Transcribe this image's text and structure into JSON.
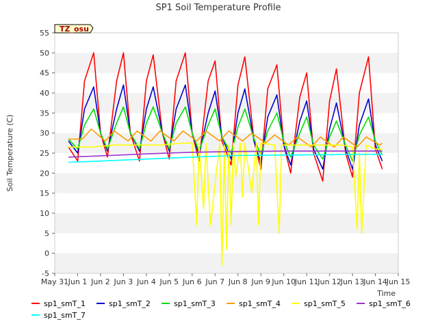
{
  "chart_data": {
    "type": "line",
    "title": "SP1 Soil Temperature Profile",
    "xlabel": "Time",
    "ylabel": "Soil Temperature (C)",
    "badge": "TZ_osu",
    "xlim": [
      0,
      15
    ],
    "ylim": [
      -5,
      55
    ],
    "yticks": [
      -5,
      0,
      5,
      10,
      15,
      20,
      25,
      30,
      35,
      40,
      45,
      50,
      55
    ],
    "xticks": [
      {
        "day": 0,
        "label": "May 31"
      },
      {
        "day": 1,
        "label": "Jun 1"
      },
      {
        "day": 2,
        "label": "Jun 2"
      },
      {
        "day": 3,
        "label": "Jun 3"
      },
      {
        "day": 4,
        "label": "Jun 4"
      },
      {
        "day": 5,
        "label": "Jun 5"
      },
      {
        "day": 6,
        "label": "Jun 6"
      },
      {
        "day": 7,
        "label": "Jun 7"
      },
      {
        "day": 8,
        "label": "Jun 8"
      },
      {
        "day": 9,
        "label": "Jun 9"
      },
      {
        "day": 10,
        "label": "Jun 10"
      },
      {
        "day": 11,
        "label": "Jun 11"
      },
      {
        "day": 12,
        "label": "Jun 12"
      },
      {
        "day": 13,
        "label": "Jun 13"
      },
      {
        "day": 14,
        "label": "Jun 14"
      },
      {
        "day": 15,
        "label": "Jun 15"
      }
    ],
    "grid": "alternating horizontal bands",
    "legend_position": "bottom",
    "series": [
      {
        "name": "sp1_smT_1",
        "color": "#ff0000",
        "x": [
          0.6,
          1.0,
          1.3,
          1.7,
          2.0,
          2.3,
          2.7,
          3.0,
          3.3,
          3.7,
          4.0,
          4.3,
          4.7,
          5.0,
          5.3,
          5.7,
          6.0,
          6.3,
          6.7,
          7.0,
          7.3,
          7.7,
          8.0,
          8.3,
          8.7,
          9.0,
          9.3,
          9.7,
          10.0,
          10.3,
          10.7,
          11.0,
          11.3,
          11.7,
          12.0,
          12.3,
          12.7,
          13.0,
          13.3,
          13.7,
          14.0,
          14.3
        ],
        "y": [
          26.5,
          23,
          43,
          50,
          30,
          24,
          43,
          50,
          30,
          23,
          43,
          49.5,
          30,
          23.5,
          43,
          50,
          30,
          23,
          43,
          48,
          28,
          22,
          42,
          49,
          28,
          21,
          41,
          47,
          27,
          20,
          39,
          45,
          25,
          18,
          38,
          46,
          25,
          19,
          40,
          49,
          26,
          21
        ]
      },
      {
        "name": "sp1_smT_2",
        "color": "#0000cc",
        "x": [
          0.6,
          1.0,
          1.3,
          1.7,
          2.0,
          2.3,
          2.7,
          3.0,
          3.3,
          3.7,
          4.0,
          4.3,
          4.7,
          5.0,
          5.3,
          5.7,
          6.0,
          6.3,
          6.7,
          7.0,
          7.3,
          7.7,
          8.0,
          8.3,
          8.7,
          9.0,
          9.3,
          9.7,
          10.0,
          10.3,
          10.7,
          11.0,
          11.3,
          11.7,
          12.0,
          12.3,
          12.7,
          13.0,
          13.3,
          13.7,
          14.0,
          14.3
        ],
        "y": [
          28,
          25,
          36,
          41.5,
          30,
          25.5,
          36,
          42,
          30,
          25.5,
          36,
          41.5,
          30,
          25.5,
          36,
          42,
          30,
          24.5,
          35,
          40.5,
          29,
          23.5,
          35,
          41,
          28,
          22.5,
          34,
          39.5,
          27,
          22,
          33,
          38,
          26,
          21,
          31,
          37.5,
          26,
          21,
          32,
          38.5,
          27,
          23
        ]
      },
      {
        "name": "sp1_smT_3",
        "color": "#00dd00",
        "x": [
          0.6,
          1.0,
          1.3,
          1.7,
          2.0,
          2.3,
          2.7,
          3.0,
          3.3,
          3.7,
          4.0,
          4.3,
          4.7,
          5.0,
          5.3,
          5.7,
          6.0,
          6.3,
          6.7,
          7.0,
          7.3,
          7.7,
          8.0,
          8.3,
          8.7,
          9.0,
          9.3,
          9.7,
          10.0,
          10.3,
          10.7,
          11.0,
          11.3,
          11.7,
          12.0,
          12.3,
          12.7,
          13.0,
          13.3,
          13.7,
          14.0,
          14.3
        ],
        "y": [
          28.5,
          26,
          32,
          36,
          30,
          26,
          32.5,
          36.5,
          30,
          26,
          32.5,
          36.5,
          30,
          26,
          32.5,
          36.5,
          30,
          25.5,
          32,
          36,
          29,
          25,
          31.5,
          36,
          28.5,
          24.5,
          30.5,
          35,
          28,
          24,
          30,
          34,
          27,
          23.5,
          29,
          33,
          27,
          23,
          29.5,
          34,
          28,
          24.5
        ]
      },
      {
        "name": "sp1_smT_4",
        "color": "#ff9900",
        "x": [
          0.6,
          1.2,
          1.6,
          2.2,
          2.6,
          3.2,
          3.6,
          4.2,
          4.6,
          5.2,
          5.6,
          6.2,
          6.6,
          7.2,
          7.6,
          8.2,
          8.6,
          9.2,
          9.6,
          10.2,
          10.6,
          11.2,
          11.6,
          12.2,
          12.6,
          13.2,
          13.6,
          14.2,
          14.3
        ],
        "y": [
          28.5,
          28.5,
          31,
          28,
          30.5,
          28,
          30.5,
          28,
          30.5,
          28,
          30.5,
          28,
          30.5,
          28,
          30.5,
          28,
          30,
          27.5,
          29.5,
          27,
          29,
          26.5,
          29,
          26.5,
          29,
          26.5,
          29,
          27,
          27.5
        ]
      },
      {
        "name": "sp1_smT_5",
        "color": "#ffff00",
        "x": [
          0.6,
          1.6,
          2.6,
          3.6,
          4.6,
          5.6,
          6.0,
          6.2,
          6.3,
          6.5,
          6.6,
          6.8,
          7.2,
          7.3,
          7.4,
          7.5,
          7.6,
          7.7,
          7.8,
          7.9,
          8.1,
          8.2,
          8.3,
          8.6,
          8.8,
          8.9,
          9.0,
          9.6,
          9.8,
          9.9,
          10.6,
          11.6,
          12.6,
          13.0,
          13.2,
          13.3,
          13.4,
          13.6,
          14.0,
          14.3
        ],
        "y": [
          26.5,
          26.5,
          27,
          27,
          27,
          27.5,
          27.5,
          7,
          27.5,
          11,
          27.5,
          7,
          27.5,
          -3,
          27,
          1,
          27,
          7,
          27.5,
          19,
          27.5,
          14,
          27.5,
          15,
          27.5,
          7,
          27.5,
          27,
          5,
          27,
          27,
          27,
          27,
          26.5,
          6,
          25,
          5,
          27,
          26,
          26
        ]
      },
      {
        "name": "sp1_smT_6",
        "color": "#9933cc",
        "x": [
          0.6,
          2,
          4,
          6,
          8,
          10,
          12,
          14.3
        ],
        "y": [
          24,
          24.3,
          24.8,
          25.2,
          25.4,
          25.5,
          25.5,
          25.5
        ]
      },
      {
        "name": "sp1_smT_7",
        "color": "#00ffff",
        "x": [
          0.6,
          2,
          4,
          6,
          8,
          10,
          12,
          14.3
        ],
        "y": [
          22.7,
          23,
          23.5,
          24,
          24.4,
          24.5,
          24.6,
          24.7
        ]
      }
    ]
  }
}
